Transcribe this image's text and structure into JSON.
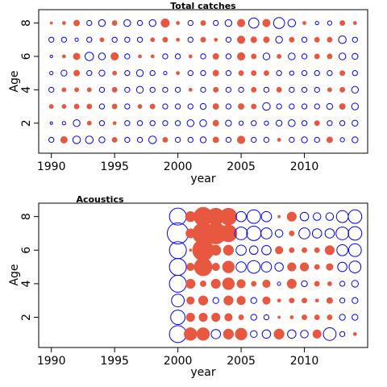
{
  "chart_data": [
    {
      "type": "scatter",
      "title": "Total catches",
      "xlabel": "year",
      "ylabel": "Age",
      "xlim": [
        1989,
        2015
      ],
      "ylim": [
        0.2,
        8.8
      ],
      "xticks": [
        1990,
        1995,
        2000,
        2005,
        2010
      ],
      "yticks": [
        2,
        4,
        6,
        8
      ],
      "x_years": [
        1990,
        1991,
        1992,
        1993,
        1994,
        1995,
        1996,
        1997,
        1998,
        1999,
        2000,
        2001,
        2002,
        2003,
        2004,
        2005,
        2006,
        2007,
        2008,
        2009,
        2010,
        2011,
        2012,
        2013,
        2014
      ],
      "series": [
        {
          "color": "#e8573f",
          "filled": true
        },
        {
          "color": "#0000ff",
          "filled": false
        }
      ],
      "bubbles": [
        {
          "age": 8,
          "sizes": [
            0.15,
            0.2,
            0.35,
            -0.3,
            -0.4,
            0.3,
            -0.4,
            -0.3,
            -0.4,
            0.5,
            0.2,
            -0.3,
            0.3,
            -0.3,
            -0.4,
            0.45,
            -0.6,
            0.45,
            -0.65,
            -0.45,
            0.2,
            -0.2,
            -0.25,
            0.3,
            0.2
          ]
        },
        {
          "age": 7,
          "sizes": [
            -0.3,
            -0.3,
            -0.2,
            -0.3,
            0.25,
            -0.3,
            -0.3,
            -0.3,
            0.25,
            0.3,
            0.2,
            -0.3,
            0.3,
            0.2,
            -0.3,
            0.45,
            0.35,
            0.35,
            -0.4,
            0.3,
            -0.3,
            0.3,
            0.3,
            -0.45,
            -0.3
          ]
        },
        {
          "age": 6,
          "sizes": [
            -0.15,
            0.2,
            0.4,
            -0.5,
            -0.4,
            0.45,
            -0.3,
            0.2,
            0.2,
            -0.3,
            -0.3,
            0.2,
            -0.3,
            0.35,
            -0.3,
            0.45,
            0.3,
            -0.4,
            0.25,
            -0.4,
            -0.3,
            0.3,
            0.3,
            -0.4,
            -0.35
          ]
        },
        {
          "age": 5,
          "sizes": [
            -0.2,
            -0.35,
            0.35,
            -0.3,
            -0.35,
            0.25,
            -0.3,
            -0.4,
            -0.3,
            -0.2,
            0.2,
            -0.3,
            -0.3,
            0.35,
            -0.3,
            0.3,
            0.3,
            0.3,
            -0.3,
            -0.25,
            -0.3,
            -0.3,
            -0.3,
            0.3,
            -0.3
          ]
        },
        {
          "age": 4,
          "sizes": [
            -0.3,
            0.25,
            0.25,
            0.25,
            -0.3,
            0.3,
            -0.3,
            -0.4,
            -0.3,
            -0.3,
            -0.3,
            0.2,
            -0.3,
            0.3,
            -0.3,
            -0.3,
            0.3,
            -0.3,
            0.3,
            -0.3,
            -0.3,
            -0.3,
            0.25,
            0.3,
            -0.4
          ]
        },
        {
          "age": 3,
          "sizes": [
            0.25,
            0.25,
            0.3,
            0.3,
            -0.3,
            0.3,
            -0.3,
            0.25,
            0.3,
            -0.3,
            -0.3,
            -0.3,
            -0.35,
            0.35,
            -0.3,
            0.35,
            0.3,
            -0.45,
            -0.3,
            -0.3,
            -0.3,
            -0.3,
            -0.35,
            0.35,
            -0.4
          ]
        },
        {
          "age": 2,
          "sizes": [
            -0.15,
            -0.2,
            -0.4,
            0.25,
            -0.3,
            0.2,
            -0.3,
            -0.3,
            -0.3,
            -0.3,
            -0.3,
            -0.4,
            -0.4,
            0.35,
            -0.35,
            -0.25,
            -0.3,
            -0.25,
            -0.35,
            -0.4,
            -0.3,
            0.3,
            -0.3,
            -0.3,
            -0.35
          ]
        },
        {
          "age": 1,
          "sizes": [
            -0.3,
            0.4,
            -0.45,
            -0.45,
            -0.35,
            0.3,
            -0.3,
            -0.3,
            -0.45,
            0.3,
            -0.3,
            -0.3,
            -0.35,
            0.35,
            -0.3,
            0.45,
            -0.3,
            -0.3,
            0.2,
            -0.3,
            -0.35,
            -0.3,
            0.35,
            -0.25,
            -0.35
          ]
        }
      ]
    },
    {
      "type": "scatter",
      "title": "Acoustics",
      "xlabel": "year",
      "ylabel": "Age",
      "xlim": [
        1989,
        2015
      ],
      "ylim": [
        0.2,
        8.8
      ],
      "xticks": [
        1990,
        1995,
        2000,
        2005,
        2010
      ],
      "yticks": [
        2,
        4,
        6,
        8
      ],
      "x_years": [
        2000,
        2001,
        2002,
        2003,
        2004,
        2005,
        2006,
        2007,
        2008,
        2009,
        2010,
        2011,
        2012,
        2013,
        2014
      ],
      "series": [
        {
          "color": "#e8573f",
          "filled": true
        },
        {
          "color": "#0000ff",
          "filled": false
        }
      ],
      "bubbles": [
        {
          "age": 8,
          "sizes": [
            -1.0,
            0.6,
            1.1,
            1.0,
            1.0,
            -0.6,
            -0.8,
            -0.6,
            0.15,
            0.55,
            -0.5,
            -0.45,
            -0.45,
            -0.7,
            -0.8
          ]
        },
        {
          "age": 7,
          "sizes": [
            -1.25,
            0.55,
            1.25,
            1.25,
            1.0,
            -0.75,
            -0.85,
            -0.65,
            -0.45,
            0.3,
            -0.65,
            -0.55,
            -0.55,
            -0.75,
            -0.8
          ]
        },
        {
          "age": 6,
          "sizes": [
            -1.0,
            0.15,
            1.25,
            0.6,
            0.6,
            -0.6,
            -0.5,
            -0.55,
            0.45,
            0.3,
            0.3,
            0.3,
            0.55,
            -0.65,
            -0.75
          ]
        },
        {
          "age": 5,
          "sizes": [
            -1.0,
            0.45,
            1.05,
            0.45,
            0.7,
            -0.6,
            -0.75,
            -0.6,
            -0.5,
            0.5,
            0.5,
            0.3,
            0.4,
            -0.55,
            -0.7
          ]
        },
        {
          "age": 4,
          "sizes": [
            -1.0,
            0.55,
            0.35,
            0.55,
            0.7,
            0.5,
            0.3,
            0.45,
            -0.2,
            0.55,
            -0.35,
            0.3,
            0.25,
            -0.3,
            -0.4
          ]
        },
        {
          "age": 3,
          "sizes": [
            -0.75,
            0.45,
            0.55,
            -0.35,
            0.55,
            0.5,
            -0.35,
            0.45,
            0.2,
            0.3,
            0.3,
            0.2,
            0.35,
            -0.3,
            -0.35
          ]
        },
        {
          "age": 2,
          "sizes": [
            -0.85,
            0.5,
            0.5,
            0.5,
            0.45,
            0.3,
            -0.35,
            -0.3,
            0.15,
            0.2,
            0.3,
            0.3,
            0.3,
            -0.35,
            -0.35
          ]
        },
        {
          "age": 1,
          "sizes": [
            -1.0,
            0.75,
            0.75,
            -0.55,
            0.6,
            0.7,
            -0.4,
            -0.5,
            0.6,
            -0.5,
            -0.45,
            0.5,
            -0.75,
            -0.3,
            0.2
          ]
        }
      ]
    }
  ]
}
